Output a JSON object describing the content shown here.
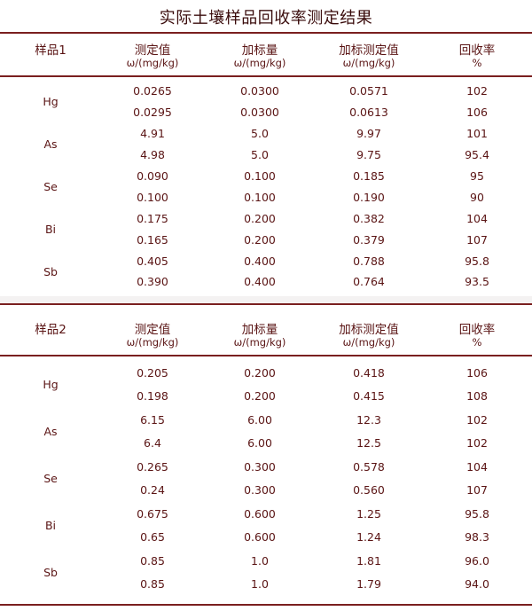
{
  "title": "实际土壤样品回收率测定结果",
  "columns": [
    {
      "label": "测定值",
      "unit": "ω/(mg/kg)"
    },
    {
      "label": "加标量",
      "unit": "ω/(mg/kg)"
    },
    {
      "label": "加标测定值",
      "unit": "ω/(mg/kg)"
    },
    {
      "label": "回收率",
      "unit": "%"
    }
  ],
  "sections": [
    {
      "sample": "样品1",
      "groups": [
        {
          "element": "Hg",
          "rows": [
            [
              "0.0265",
              "0.0300",
              "0.0571",
              "102"
            ],
            [
              "0.0295",
              "0.0300",
              "0.0613",
              "106"
            ]
          ]
        },
        {
          "element": "As",
          "rows": [
            [
              "4.91",
              "5.0",
              "9.97",
              "101"
            ],
            [
              "4.98",
              "5.0",
              "9.75",
              "95.4"
            ]
          ]
        },
        {
          "element": "Se",
          "rows": [
            [
              "0.090",
              "0.100",
              "0.185",
              "95"
            ],
            [
              "0.100",
              "0.100",
              "0.190",
              "90"
            ]
          ]
        },
        {
          "element": "Bi",
          "rows": [
            [
              "0.175",
              "0.200",
              "0.382",
              "104"
            ],
            [
              "0.165",
              "0.200",
              "0.379",
              "107"
            ]
          ]
        },
        {
          "element": "Sb",
          "rows": [
            [
              "0.405",
              "0.400",
              "0.788",
              "95.8"
            ],
            [
              "0.390",
              "0.400",
              "0.764",
              "93.5"
            ]
          ]
        }
      ]
    },
    {
      "sample": "样品2",
      "groups": [
        {
          "element": "Hg",
          "rows": [
            [
              "0.205",
              "0.200",
              "0.418",
              "106"
            ],
            [
              "0.198",
              "0.200",
              "0.415",
              "108"
            ]
          ]
        },
        {
          "element": "As",
          "rows": [
            [
              "6.15",
              "6.00",
              "12.3",
              "102"
            ],
            [
              "6.4",
              "6.00",
              "12.5",
              "102"
            ]
          ]
        },
        {
          "element": "Se",
          "rows": [
            [
              "0.265",
              "0.300",
              "0.578",
              "104"
            ],
            [
              "0.24",
              "0.300",
              "0.560",
              "107"
            ]
          ]
        },
        {
          "element": "Bi",
          "rows": [
            [
              "0.675",
              "0.600",
              "1.25",
              "95.8"
            ],
            [
              "0.65",
              "0.600",
              "1.24",
              "98.3"
            ]
          ]
        },
        {
          "element": "Sb",
          "rows": [
            [
              "0.85",
              "1.0",
              "1.81",
              "96.0"
            ],
            [
              "0.85",
              "1.0",
              "1.79",
              "94.0"
            ]
          ]
        }
      ]
    }
  ]
}
